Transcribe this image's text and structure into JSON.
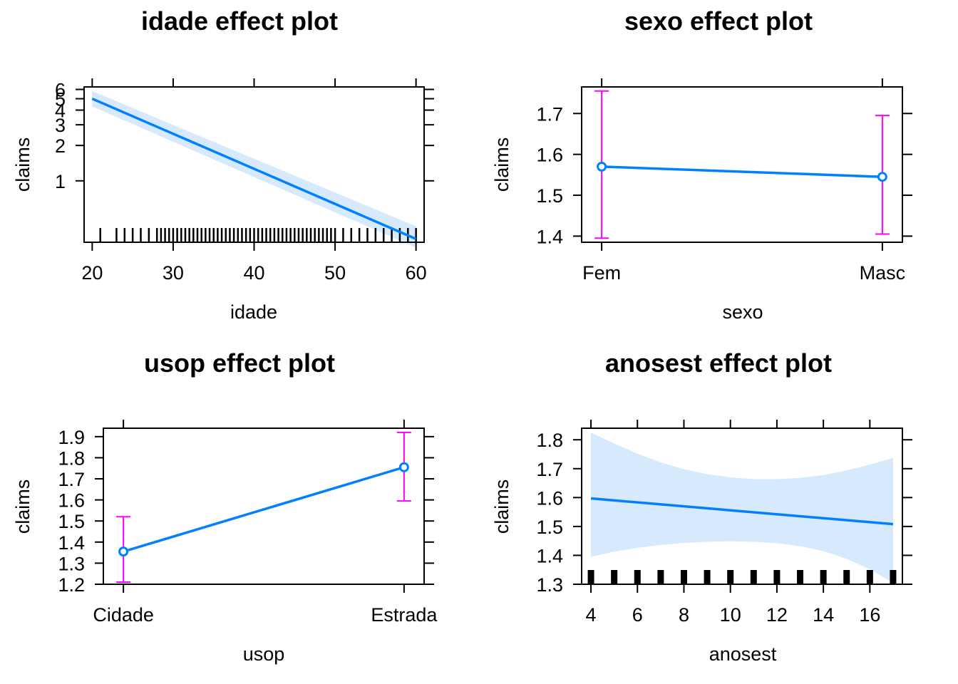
{
  "chart_data": [
    {
      "type": "line",
      "title": "idade effect plot",
      "xlabel": "idade",
      "ylabel": "claims",
      "xlim": [
        19.0,
        61.0
      ],
      "ylim": [
        0.3,
        6.3
      ],
      "y_scale": "log",
      "x_ticks": [
        20,
        30,
        40,
        50,
        60
      ],
      "y_ticks": [
        1,
        2,
        3,
        4,
        5,
        6
      ],
      "grid": false,
      "line_color": "#0080ff",
      "band_color": "#d6e9fd",
      "fit": {
        "x": [
          20,
          60
        ],
        "y": [
          5.0,
          0.32
        ]
      },
      "band": {
        "x": [
          20,
          60
        ],
        "lower": [
          4.3,
          0.27
        ],
        "upper": [
          5.8,
          0.41
        ]
      },
      "rug": [
        21,
        23,
        24,
        25,
        26,
        27,
        28,
        28.5,
        29,
        29.5,
        30,
        30.5,
        31,
        31.5,
        32,
        32.5,
        33,
        33.5,
        34,
        34.5,
        35,
        35.5,
        36,
        36.5,
        37,
        37.5,
        38,
        38.5,
        39,
        39.5,
        40,
        40.5,
        41,
        41.5,
        42,
        42.5,
        43,
        43.5,
        44,
        44.5,
        45,
        45.5,
        46,
        46.5,
        47,
        47.5,
        48,
        48.5,
        49,
        49.5,
        50,
        51,
        52,
        53,
        54,
        55,
        56,
        57,
        58,
        59,
        60
      ]
    },
    {
      "type": "line",
      "title": "sexo effect plot",
      "xlabel": "sexo",
      "ylabel": "claims",
      "categories": [
        "Fem",
        "Masc"
      ],
      "ylim": [
        1.385,
        1.765
      ],
      "y_ticks": [
        1.4,
        1.5,
        1.6,
        1.7
      ],
      "grid": false,
      "line_color": "#0080ff",
      "error_color": "#ff00ff",
      "values": [
        1.57,
        1.545
      ],
      "lower": [
        1.395,
        1.405
      ],
      "upper": [
        1.755,
        1.695
      ]
    },
    {
      "type": "line",
      "title": "usop effect plot",
      "xlabel": "usop",
      "ylabel": "claims",
      "categories": [
        "Cidade",
        "Estrada"
      ],
      "ylim": [
        1.2,
        1.94
      ],
      "y_ticks": [
        1.2,
        1.3,
        1.4,
        1.5,
        1.6,
        1.7,
        1.8,
        1.9
      ],
      "grid": false,
      "line_color": "#0080ff",
      "error_color": "#ff00ff",
      "values": [
        1.355,
        1.755
      ],
      "lower": [
        1.21,
        1.595
      ],
      "upper": [
        1.52,
        1.92
      ]
    },
    {
      "type": "line",
      "title": "anosest effect plot",
      "xlabel": "anosest",
      "ylabel": "claims",
      "xlim": [
        3.6,
        17.4
      ],
      "ylim": [
        1.3,
        1.84
      ],
      "x_ticks": [
        4,
        6,
        8,
        10,
        12,
        14,
        16
      ],
      "y_ticks": [
        1.3,
        1.4,
        1.5,
        1.6,
        1.7,
        1.8
      ],
      "grid": false,
      "line_color": "#0080ff",
      "band_color": "#d6e9fd",
      "fit": {
        "x": [
          4,
          17
        ],
        "y": [
          1.597,
          1.508
        ]
      },
      "band": {
        "x": [
          4,
          5,
          6,
          7,
          8,
          9,
          10,
          11,
          12,
          13,
          14,
          15,
          16,
          17
        ],
        "lower": [
          1.395,
          1.413,
          1.426,
          1.436,
          1.443,
          1.447,
          1.449,
          1.447,
          1.442,
          1.432,
          1.415,
          1.388,
          1.352,
          1.305
        ],
        "upper": [
          1.825,
          1.787,
          1.752,
          1.722,
          1.698,
          1.681,
          1.67,
          1.664,
          1.664,
          1.668,
          1.678,
          1.694,
          1.714,
          1.737
        ]
      },
      "rug": [
        4,
        5,
        6,
        7,
        8,
        9,
        10,
        11,
        12,
        13,
        14,
        15,
        16,
        17
      ]
    }
  ]
}
